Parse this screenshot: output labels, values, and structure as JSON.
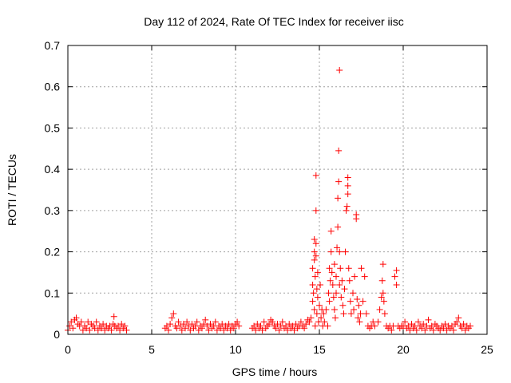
{
  "chart_data": {
    "type": "scatter",
    "title": "Day 112 of 2024, Rate Of TEC Index for receiver iisc",
    "xlabel": "GPS time / hours",
    "ylabel": "ROTI / TECUs",
    "xlim": [
      0,
      25
    ],
    "ylim": [
      0,
      0.7
    ],
    "x_ticks": [
      "0",
      "5",
      "10",
      "15",
      "20",
      "25"
    ],
    "y_ticks": [
      "0",
      "0.1",
      "0.2",
      "0.3",
      "0.4",
      "0.5",
      "0.6",
      "0.7"
    ],
    "grid": true,
    "marker": "+",
    "series": [
      {
        "color": "#ff0000",
        "points": [
          [
            0.0,
            0.01
          ],
          [
            0.1,
            0.02
          ],
          [
            0.2,
            0.03
          ],
          [
            0.3,
            0.015
          ],
          [
            0.4,
            0.035
          ],
          [
            0.5,
            0.04
          ],
          [
            0.6,
            0.025
          ],
          [
            0.7,
            0.02
          ],
          [
            0.8,
            0.03
          ],
          [
            0.9,
            0.01
          ],
          [
            1.0,
            0.02
          ],
          [
            1.1,
            0.015
          ],
          [
            1.2,
            0.03
          ],
          [
            1.3,
            0.01
          ],
          [
            1.4,
            0.025
          ],
          [
            1.5,
            0.02
          ],
          [
            1.6,
            0.015
          ],
          [
            1.7,
            0.03
          ],
          [
            1.8,
            0.01
          ],
          [
            1.9,
            0.02
          ],
          [
            2.0,
            0.015
          ],
          [
            2.1,
            0.025
          ],
          [
            2.2,
            0.01
          ],
          [
            2.3,
            0.02
          ],
          [
            2.4,
            0.015
          ],
          [
            2.5,
            0.02
          ],
          [
            2.6,
            0.01
          ],
          [
            2.7,
            0.025
          ],
          [
            2.75,
            0.043
          ],
          [
            2.8,
            0.02
          ],
          [
            2.9,
            0.015
          ],
          [
            3.0,
            0.02
          ],
          [
            3.1,
            0.01
          ],
          [
            3.2,
            0.025
          ],
          [
            3.3,
            0.015
          ],
          [
            3.4,
            0.02
          ],
          [
            3.5,
            0.01
          ],
          [
            5.8,
            0.015
          ],
          [
            5.9,
            0.02
          ],
          [
            6.0,
            0.01
          ],
          [
            6.1,
            0.025
          ],
          [
            6.2,
            0.04
          ],
          [
            6.3,
            0.05
          ],
          [
            6.4,
            0.02
          ],
          [
            6.5,
            0.015
          ],
          [
            6.6,
            0.03
          ],
          [
            6.7,
            0.02
          ],
          [
            6.8,
            0.01
          ],
          [
            6.9,
            0.025
          ],
          [
            7.0,
            0.015
          ],
          [
            7.1,
            0.03
          ],
          [
            7.2,
            0.02
          ],
          [
            7.3,
            0.01
          ],
          [
            7.4,
            0.025
          ],
          [
            7.5,
            0.015
          ],
          [
            7.6,
            0.02
          ],
          [
            7.7,
            0.03
          ],
          [
            7.8,
            0.01
          ],
          [
            7.9,
            0.02
          ],
          [
            8.0,
            0.015
          ],
          [
            8.1,
            0.025
          ],
          [
            8.2,
            0.035
          ],
          [
            8.3,
            0.02
          ],
          [
            8.4,
            0.01
          ],
          [
            8.5,
            0.025
          ],
          [
            8.6,
            0.015
          ],
          [
            8.7,
            0.02
          ],
          [
            8.8,
            0.03
          ],
          [
            8.9,
            0.01
          ],
          [
            9.0,
            0.02
          ],
          [
            9.1,
            0.015
          ],
          [
            9.2,
            0.025
          ],
          [
            9.3,
            0.01
          ],
          [
            9.4,
            0.02
          ],
          [
            9.5,
            0.015
          ],
          [
            9.6,
            0.025
          ],
          [
            9.7,
            0.01
          ],
          [
            9.8,
            0.02
          ],
          [
            9.9,
            0.015
          ],
          [
            10.0,
            0.025
          ],
          [
            10.1,
            0.03
          ],
          [
            10.2,
            0.02
          ],
          [
            11.0,
            0.015
          ],
          [
            11.1,
            0.02
          ],
          [
            11.2,
            0.01
          ],
          [
            11.3,
            0.025
          ],
          [
            11.4,
            0.015
          ],
          [
            11.5,
            0.02
          ],
          [
            11.6,
            0.01
          ],
          [
            11.7,
            0.03
          ],
          [
            11.8,
            0.015
          ],
          [
            11.9,
            0.02
          ],
          [
            12.0,
            0.025
          ],
          [
            12.1,
            0.035
          ],
          [
            12.2,
            0.03
          ],
          [
            12.3,
            0.02
          ],
          [
            12.4,
            0.015
          ],
          [
            12.5,
            0.025
          ],
          [
            12.6,
            0.01
          ],
          [
            12.7,
            0.02
          ],
          [
            12.8,
            0.03
          ],
          [
            12.9,
            0.015
          ],
          [
            13.0,
            0.02
          ],
          [
            13.1,
            0.01
          ],
          [
            13.2,
            0.025
          ],
          [
            13.3,
            0.015
          ],
          [
            13.4,
            0.02
          ],
          [
            13.5,
            0.01
          ],
          [
            13.6,
            0.025
          ],
          [
            13.7,
            0.015
          ],
          [
            13.8,
            0.02
          ],
          [
            13.9,
            0.03
          ],
          [
            14.0,
            0.02
          ],
          [
            14.1,
            0.015
          ],
          [
            14.2,
            0.025
          ],
          [
            14.3,
            0.035
          ],
          [
            14.4,
            0.03
          ],
          [
            14.5,
            0.04
          ],
          [
            14.6,
            0.08
          ],
          [
            14.6,
            0.12
          ],
          [
            14.6,
            0.16
          ],
          [
            14.65,
            0.1
          ],
          [
            14.7,
            0.2
          ],
          [
            14.7,
            0.23
          ],
          [
            14.7,
            0.18
          ],
          [
            14.7,
            0.06
          ],
          [
            14.75,
            0.14
          ],
          [
            14.75,
            0.02
          ],
          [
            14.8,
            0.385
          ],
          [
            14.8,
            0.3
          ],
          [
            14.8,
            0.22
          ],
          [
            14.8,
            0.19
          ],
          [
            14.85,
            0.11
          ],
          [
            14.85,
            0.05
          ],
          [
            14.9,
            0.15
          ],
          [
            14.9,
            0.09
          ],
          [
            14.95,
            0.03
          ],
          [
            15.0,
            0.07
          ],
          [
            15.05,
            0.12
          ],
          [
            15.1,
            0.04
          ],
          [
            15.15,
            0.06
          ],
          [
            15.2,
            0.02
          ],
          [
            15.25,
            0.05
          ],
          [
            15.3,
            0.03
          ],
          [
            15.4,
            0.06
          ],
          [
            15.5,
            0.02
          ],
          [
            15.55,
            0.1
          ],
          [
            15.6,
            0.08
          ],
          [
            15.6,
            0.16
          ],
          [
            15.65,
            0.13
          ],
          [
            15.7,
            0.25
          ],
          [
            15.7,
            0.2
          ],
          [
            15.75,
            0.15
          ],
          [
            15.8,
            0.12
          ],
          [
            15.85,
            0.09
          ],
          [
            15.9,
            0.17
          ],
          [
            15.9,
            0.06
          ],
          [
            15.95,
            0.04
          ],
          [
            16.0,
            0.14
          ],
          [
            16.0,
            0.1
          ],
          [
            16.05,
            0.21
          ],
          [
            16.1,
            0.33
          ],
          [
            16.1,
            0.26
          ],
          [
            16.15,
            0.445
          ],
          [
            16.15,
            0.37
          ],
          [
            16.2,
            0.64
          ],
          [
            16.2,
            0.12
          ],
          [
            16.2,
            0.2
          ],
          [
            16.25,
            0.16
          ],
          [
            16.3,
            0.09
          ],
          [
            16.35,
            0.13
          ],
          [
            16.4,
            0.07
          ],
          [
            16.45,
            0.05
          ],
          [
            16.5,
            0.11
          ],
          [
            16.55,
            0.2
          ],
          [
            16.6,
            0.3
          ],
          [
            16.65,
            0.31
          ],
          [
            16.7,
            0.38
          ],
          [
            16.7,
            0.36
          ],
          [
            16.7,
            0.34
          ],
          [
            16.75,
            0.16
          ],
          [
            16.8,
            0.13
          ],
          [
            16.85,
            0.08
          ],
          [
            16.9,
            0.05
          ],
          [
            17.0,
            0.1
          ],
          [
            17.05,
            0.06
          ],
          [
            17.1,
            0.14
          ],
          [
            17.2,
            0.29
          ],
          [
            17.2,
            0.28
          ],
          [
            17.25,
            0.085
          ],
          [
            17.3,
            0.04
          ],
          [
            17.35,
            0.07
          ],
          [
            17.4,
            0.03
          ],
          [
            17.45,
            0.05
          ],
          [
            17.5,
            0.16
          ],
          [
            17.6,
            0.08
          ],
          [
            17.7,
            0.14
          ],
          [
            17.8,
            0.05
          ],
          [
            17.9,
            0.02
          ],
          [
            18.0,
            0.015
          ],
          [
            18.1,
            0.02
          ],
          [
            18.2,
            0.03
          ],
          [
            18.3,
            0.02
          ],
          [
            18.5,
            0.03
          ],
          [
            18.6,
            0.06
          ],
          [
            18.7,
            0.09
          ],
          [
            18.75,
            0.13
          ],
          [
            18.8,
            0.17
          ],
          [
            18.8,
            0.1
          ],
          [
            18.85,
            0.08
          ],
          [
            18.9,
            0.05
          ],
          [
            19.0,
            0.02
          ],
          [
            19.1,
            0.015
          ],
          [
            19.2,
            0.02
          ],
          [
            19.3,
            0.01
          ],
          [
            19.4,
            0.02
          ],
          [
            19.5,
            0.14
          ],
          [
            19.6,
            0.155
          ],
          [
            19.6,
            0.12
          ],
          [
            19.7,
            0.02
          ],
          [
            19.8,
            0.015
          ],
          [
            19.9,
            0.02
          ],
          [
            20.0,
            0.02
          ],
          [
            20.1,
            0.03
          ],
          [
            20.2,
            0.015
          ],
          [
            20.3,
            0.02
          ],
          [
            20.4,
            0.01
          ],
          [
            20.5,
            0.025
          ],
          [
            20.6,
            0.015
          ],
          [
            20.7,
            0.02
          ],
          [
            20.8,
            0.01
          ],
          [
            20.9,
            0.03
          ],
          [
            21.0,
            0.02
          ],
          [
            21.1,
            0.015
          ],
          [
            21.2,
            0.025
          ],
          [
            21.3,
            0.01
          ],
          [
            21.4,
            0.02
          ],
          [
            21.5,
            0.035
          ],
          [
            21.6,
            0.015
          ],
          [
            21.7,
            0.02
          ],
          [
            21.8,
            0.01
          ],
          [
            21.9,
            0.025
          ],
          [
            22.0,
            0.02
          ],
          [
            22.1,
            0.015
          ],
          [
            22.2,
            0.01
          ],
          [
            22.3,
            0.02
          ],
          [
            22.4,
            0.015
          ],
          [
            22.5,
            0.025
          ],
          [
            22.6,
            0.01
          ],
          [
            22.7,
            0.02
          ],
          [
            22.8,
            0.015
          ],
          [
            22.9,
            0.02
          ],
          [
            23.0,
            0.01
          ],
          [
            23.1,
            0.025
          ],
          [
            23.2,
            0.03
          ],
          [
            23.3,
            0.04
          ],
          [
            23.4,
            0.02
          ],
          [
            23.5,
            0.015
          ],
          [
            23.6,
            0.025
          ],
          [
            23.7,
            0.01
          ],
          [
            23.8,
            0.02
          ],
          [
            23.9,
            0.015
          ],
          [
            24.0,
            0.02
          ]
        ]
      }
    ]
  }
}
